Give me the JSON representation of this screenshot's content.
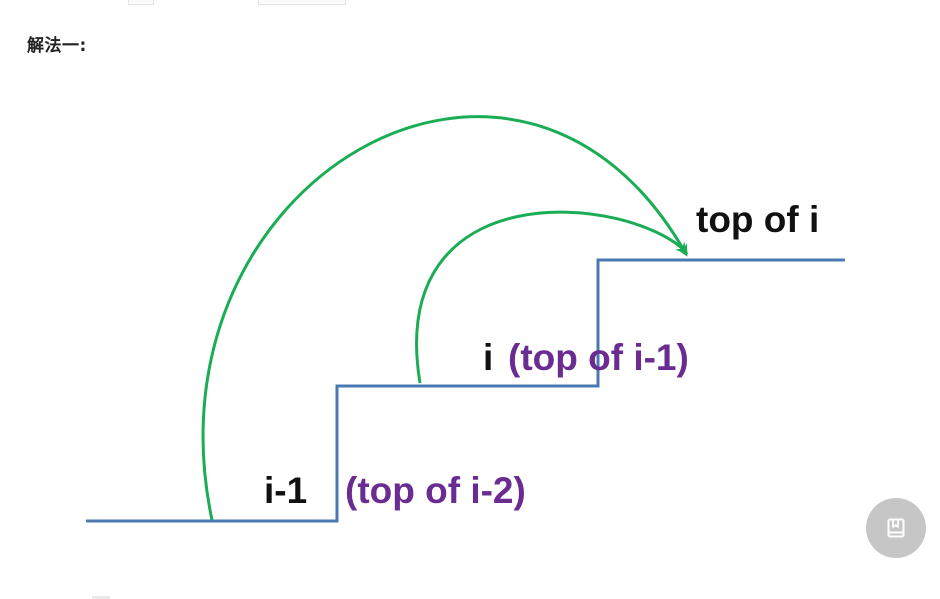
{
  "heading": {
    "text": "解法一:"
  },
  "diagram": {
    "labels": {
      "top_of_i": "top of i",
      "i": "i",
      "top_of_i_minus_1": "(top of i-1)",
      "i_minus_1": "i-1",
      "top_of_i_minus_2": "(top of i-2)"
    },
    "colors": {
      "stairs": "#4a78b0",
      "arrows": "#1aad55",
      "label_black": "#111111",
      "label_purple": "#6a2c91"
    }
  },
  "floating_button": {
    "icon": "book-icon",
    "color": "#c6c6c6"
  }
}
